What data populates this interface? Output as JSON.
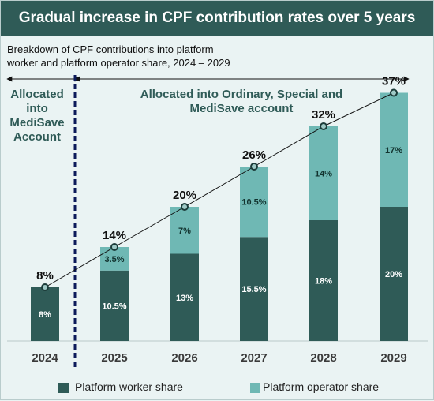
{
  "title": "Gradual increase in CPF contribution rates over 5 years",
  "subtitle_lines": [
    "Breakdown of CPF contributions into platform",
    "worker and platform operator share, 2024 – 2029"
  ],
  "annotations": {
    "left_lines": [
      "Allocated",
      "into",
      "MediSave",
      "Account"
    ],
    "right_lines": [
      "Allocated into Ordinary, Special and",
      "MediSave account"
    ]
  },
  "legend": {
    "worker": "Platform worker share",
    "operator": "Platform operator share"
  },
  "colors": {
    "title_bg": "#2f5b57",
    "worker": "#2f5b57",
    "operator": "#6fb8b4",
    "annotation_text": "#2f5b57",
    "divider": "#0c1a5a",
    "background": "#eaf3f3"
  },
  "chart_data": {
    "type": "bar",
    "stacked": true,
    "categories": [
      "2024",
      "2025",
      "2026",
      "2027",
      "2028",
      "2029"
    ],
    "series": [
      {
        "name": "Platform worker share",
        "values": [
          8,
          10.5,
          13,
          15.5,
          18,
          20
        ],
        "labels": [
          "8%",
          "10.5%",
          "13%",
          "15.5%",
          "18%",
          "20%"
        ]
      },
      {
        "name": "Platform operator share",
        "values": [
          0,
          3.5,
          7,
          10.5,
          14,
          17
        ],
        "labels": [
          "",
          "3.5%",
          "7%",
          "10.5%",
          "14%",
          "17%"
        ]
      }
    ],
    "totals": [
      8,
      14,
      20,
      26,
      32,
      37
    ],
    "total_labels": [
      "8%",
      "14%",
      "20%",
      "26%",
      "32%",
      "37%"
    ],
    "ylim": [
      0,
      40
    ],
    "grid": false,
    "legend_position": "bottom",
    "trend_line": true
  }
}
